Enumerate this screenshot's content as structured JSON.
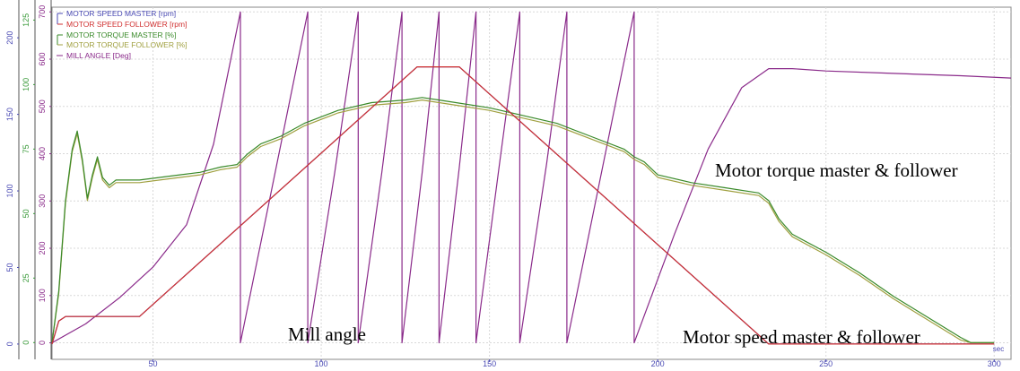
{
  "chart_data": {
    "type": "line",
    "x_unit": "sec",
    "xlim": [
      20,
      305
    ],
    "x_ticks": [
      "50",
      "100",
      "150",
      "200",
      "250",
      "300"
    ],
    "axes": [
      {
        "name": "speed-axis",
        "color": "#4a4ab4",
        "ylim": [
          -10,
          220
        ],
        "ticks": [
          "0",
          "50",
          "100",
          "150",
          "200"
        ]
      },
      {
        "name": "torque-axis",
        "color": "#3a9a3a",
        "ylim": [
          -6.5,
          130
        ],
        "ticks": [
          "0",
          "25",
          "50",
          "75",
          "100",
          "125"
        ]
      },
      {
        "name": "angle-axis",
        "color": "#8a2a8a",
        "ylim": [
          -35,
          710
        ],
        "ticks": [
          "0",
          "100",
          "200",
          "300",
          "400",
          "500",
          "600",
          "700"
        ]
      }
    ],
    "legend": [
      {
        "label": "MOTOR SPEED MASTER [rpm]",
        "color": "#4a4ab4"
      },
      {
        "label": "MOTOR SPEED FOLLOWER [rpm]",
        "color": "#d03030"
      },
      {
        "label": "MOTOR TORQUE MASTER [%]",
        "color": "#3a8a2a"
      },
      {
        "label": "MOTOR TORQUE FOLLOWER [%]",
        "color": "#a0a040"
      },
      {
        "label": "MILL ANGLE [Deg]",
        "color": "#8a2a8a"
      }
    ],
    "series": [
      {
        "name": "MOTOR SPEED MASTER [rpm]",
        "axis": 0,
        "color": "#4a4ab4",
        "x": [
          20,
          22,
          24,
          46,
          128.5,
          141,
          233,
          300
        ],
        "y": [
          0,
          15,
          18,
          18,
          181,
          181,
          0,
          0
        ]
      },
      {
        "name": "MOTOR SPEED FOLLOWER [rpm]",
        "axis": 0,
        "color": "#d03030",
        "x": [
          20,
          22,
          24,
          46,
          128.5,
          141,
          233,
          300
        ],
        "y": [
          0,
          15,
          18,
          18,
          181,
          181,
          0,
          0
        ]
      },
      {
        "name": "MOTOR TORQUE MASTER [%]",
        "axis": 1,
        "color": "#3a8a2a",
        "x": [
          20,
          22,
          24,
          26,
          27.5,
          29,
          30.5,
          32,
          33.5,
          35,
          37,
          39,
          42,
          46,
          52,
          58,
          64,
          70,
          75,
          78,
          82,
          88,
          95,
          105,
          115,
          125,
          130,
          135,
          140,
          150,
          160,
          170,
          180,
          190,
          193,
          196,
          200,
          210,
          220,
          230,
          233,
          236,
          240,
          250,
          260,
          270,
          280,
          290,
          293,
          300
        ],
        "y": [
          0,
          20,
          55,
          75,
          82,
          71,
          56,
          65,
          72,
          64,
          61,
          63,
          63,
          63,
          64,
          65,
          66,
          68,
          69,
          73,
          77,
          80,
          85,
          90,
          93,
          94,
          95,
          94,
          93,
          91,
          88,
          85,
          80,
          75,
          72,
          70,
          65,
          62,
          60,
          58,
          55,
          48,
          42,
          35,
          27,
          18,
          10,
          2,
          0,
          0
        ]
      },
      {
        "name": "MOTOR TORQUE FOLLOWER [%]",
        "axis": 1,
        "color": "#a0a040",
        "x": [
          20,
          22,
          24,
          26,
          27.5,
          29,
          30.5,
          32,
          33.5,
          35,
          37,
          39,
          42,
          46,
          52,
          58,
          64,
          70,
          75,
          78,
          82,
          88,
          95,
          105,
          115,
          125,
          130,
          135,
          140,
          150,
          160,
          170,
          180,
          190,
          193,
          196,
          200,
          210,
          220,
          230,
          233,
          236,
          240,
          250,
          260,
          270,
          280,
          290,
          293,
          300
        ],
        "y": [
          0,
          19,
          54,
          74,
          81,
          70,
          55,
          64,
          71,
          63,
          60,
          62,
          62,
          62,
          63,
          64,
          65,
          67,
          68,
          72,
          76,
          79,
          84,
          89,
          92,
          93,
          94,
          93,
          92,
          90,
          87,
          84,
          79,
          74,
          71,
          69,
          64,
          61,
          59,
          57,
          54,
          47,
          41,
          34,
          26,
          17,
          9,
          1,
          0,
          0
        ]
      },
      {
        "name": "MILL ANGLE [Deg]",
        "axis": 2,
        "color": "#8a2a8a",
        "x": [
          20,
          30,
          40,
          50,
          60,
          68,
          76,
          76,
          86,
          96,
          96,
          104,
          111,
          111,
          118,
          124,
          124,
          130,
          135,
          135,
          141,
          146,
          146,
          153,
          159,
          159,
          167,
          173,
          173,
          183,
          193,
          193,
          205,
          215,
          225,
          233,
          240,
          250,
          270,
          290,
          305
        ],
        "y": [
          0,
          40,
          95,
          160,
          250,
          420,
          700,
          0,
          350,
          700,
          0,
          360,
          700,
          0,
          360,
          700,
          0,
          360,
          700,
          0,
          370,
          700,
          0,
          380,
          700,
          0,
          380,
          700,
          0,
          350,
          700,
          0,
          230,
          410,
          540,
          580,
          580,
          575,
          570,
          565,
          560
        ]
      }
    ],
    "annotations": [
      {
        "text": "Motor torque master & follower"
      },
      {
        "text": "Mill angle"
      },
      {
        "text": "Motor speed master & follower"
      }
    ]
  }
}
